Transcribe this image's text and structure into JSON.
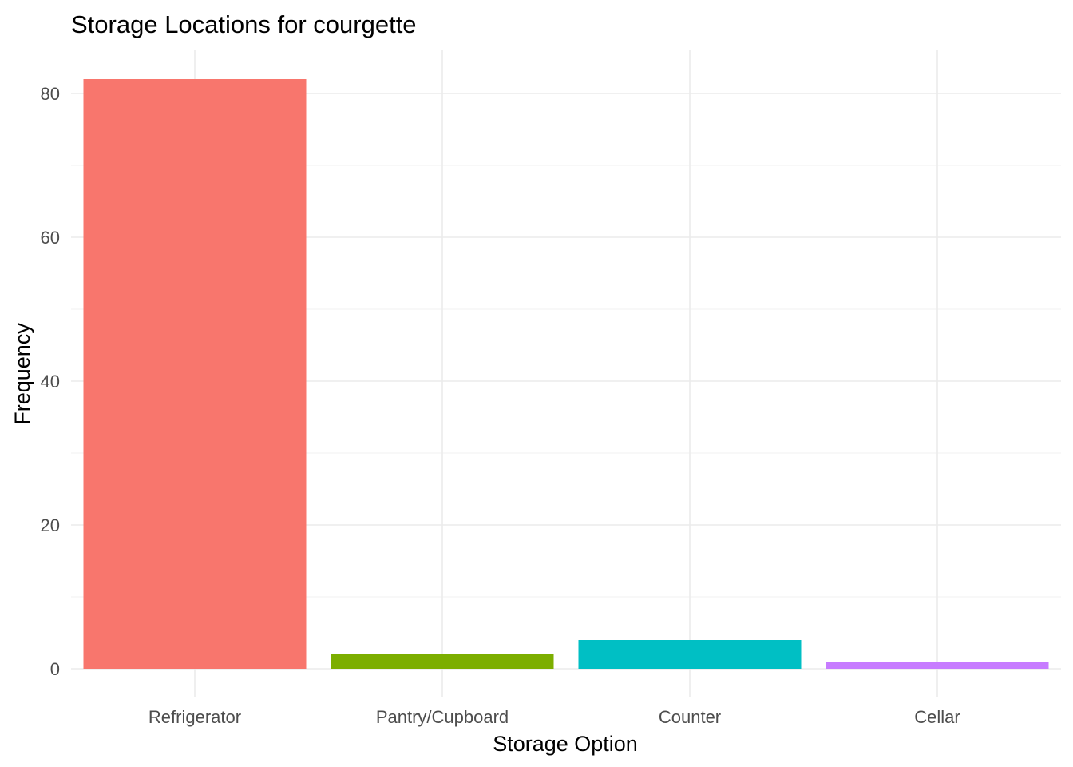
{
  "chart_data": {
    "type": "bar",
    "title": "Storage Locations for courgette",
    "xlabel": "Storage Option",
    "ylabel": "Frequency",
    "categories": [
      "Refrigerator",
      "Pantry/Cupboard",
      "Counter",
      "Cellar"
    ],
    "values": [
      82,
      2,
      4,
      1
    ],
    "colors": [
      "#F8766D",
      "#7CAE00",
      "#00BFC4",
      "#C77CFF"
    ],
    "ylim": [
      0,
      86
    ],
    "yticks": [
      0,
      20,
      40,
      60,
      80
    ],
    "yticks_minor": [
      10,
      30,
      50,
      70
    ],
    "grid": true,
    "legend": "none"
  }
}
